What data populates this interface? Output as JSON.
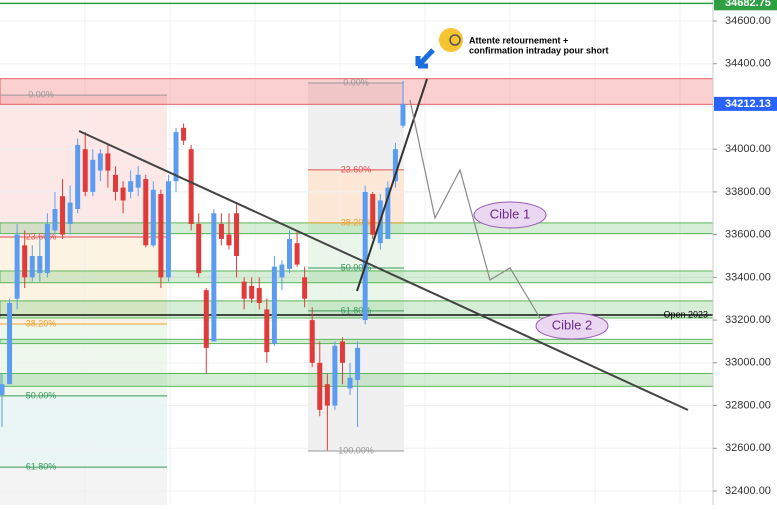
{
  "chart_data": {
    "type": "candlestick",
    "categories": [
      null,
      null,
      null,
      null,
      null,
      null,
      null,
      null,
      null,
      null,
      null,
      null,
      null,
      null,
      null,
      null,
      null,
      null,
      null,
      null,
      null,
      null,
      null,
      null,
      null,
      null,
      null,
      null,
      null,
      null,
      null,
      null,
      null,
      null,
      null,
      null,
      null,
      null,
      null,
      null,
      null,
      null,
      null,
      null,
      null,
      null,
      null,
      null,
      null,
      null,
      null,
      null,
      null,
      null
    ],
    "open": [
      32850,
      32900,
      33300,
      33550,
      33400,
      33420,
      33420,
      33620,
      33780,
      33650,
      33720,
      34000,
      33800,
      33900,
      33980,
      33880,
      33820,
      33800,
      33820,
      33860,
      33550,
      33790,
      33400,
      33850,
      34100,
      34000,
      33650,
      33340,
      33100,
      33650,
      33600,
      33700,
      33380,
      33360,
      33350,
      33250,
      33090,
      33400,
      33440,
      33560,
      33400,
      33200,
      33000,
      32900,
      32800,
      33100,
      32880,
      32920,
      33200,
      33790,
      33560,
      33580,
      33850,
      34110
    ],
    "high": [
      32950,
      33300,
      33650,
      33620,
      33550,
      33580,
      33700,
      33800,
      33860,
      33830,
      34050,
      34080,
      34000,
      34000,
      34020,
      33920,
      33850,
      33900,
      33920,
      33880,
      33850,
      33810,
      33880,
      34100,
      34120,
      34020,
      33700,
      33350,
      33720,
      33700,
      33700,
      33750,
      33400,
      33400,
      33400,
      33300,
      33500,
      33480,
      33620,
      33620,
      33450,
      33260,
      33100,
      32950,
      33100,
      33120,
      33000,
      33100,
      33830,
      33800,
      33790,
      33850,
      34030,
      34320
    ],
    "low": [
      32700,
      32900,
      33250,
      33350,
      33380,
      33380,
      33400,
      33600,
      33580,
      33600,
      33700,
      33780,
      33780,
      33850,
      33820,
      33760,
      33700,
      33770,
      33780,
      33540,
      33540,
      33350,
      33380,
      33800,
      34020,
      33620,
      33400,
      32950,
      33100,
      33550,
      33530,
      33400,
      33250,
      33280,
      33250,
      33000,
      33080,
      33340,
      33420,
      33450,
      33260,
      32980,
      32750,
      32590,
      32780,
      32900,
      32850,
      32700,
      33180,
      33580,
      33530,
      33580,
      33820,
      34100
    ],
    "close": [
      32900,
      33280,
      33600,
      33400,
      33500,
      33500,
      33650,
      33720,
      33600,
      33750,
      34020,
      33800,
      33950,
      33980,
      33900,
      33800,
      33760,
      33850,
      33880,
      33550,
      33810,
      33400,
      33850,
      34080,
      34040,
      33650,
      33420,
      33070,
      33700,
      33580,
      33550,
      33500,
      33300,
      33300,
      33280,
      33050,
      33450,
      33460,
      33580,
      33460,
      33300,
      33000,
      32780,
      32800,
      33080,
      33000,
      32930,
      33070,
      33800,
      33600,
      33760,
      33820,
      34000,
      34212.13
    ],
    "up_color": "#5b9cf0",
    "down_color": "#e03b3b",
    "ylim": [
      32334.5,
      34698.3
    ],
    "yticks": [
      {
        "value": 32400,
        "label": "32400.00"
      },
      {
        "value": 32600,
        "label": "32600.00"
      },
      {
        "value": 32800,
        "label": "32800.00"
      },
      {
        "value": 33000,
        "label": "33000.00"
      },
      {
        "value": 33200,
        "label": "33200.00"
      },
      {
        "value": 33400,
        "label": "33400.00"
      },
      {
        "value": 33600,
        "label": "33600.00"
      },
      {
        "value": 33800,
        "label": "33800.00"
      },
      {
        "value": 34000,
        "label": "34000.00"
      },
      {
        "value": 34200,
        "label": "34200.00"
      },
      {
        "value": 34400,
        "label": "34400.00"
      },
      {
        "value": 34600,
        "label": "34600.00"
      }
    ],
    "price_labels": [
      {
        "value": 34682.75,
        "label": "34682.75",
        "color": "#2ea043"
      },
      {
        "value": 34212.13,
        "label": "34212.13",
        "color": "#2962ff"
      }
    ],
    "zones": [
      [
        33605,
        33655
      ],
      [
        33375,
        33430
      ],
      [
        33210,
        33290
      ],
      [
        33090,
        33110
      ],
      [
        32890,
        32950
      ]
    ],
    "resistance_zone": [
      34210,
      34330
    ],
    "open_line": {
      "value": 33224,
      "label": "Open 2023"
    },
    "fib_left": [
      {
        "level": 34253,
        "text": "0.00%"
      },
      {
        "level": 33589,
        "text": "23.60%"
      },
      {
        "level": 33182,
        "text": "38.20%"
      },
      {
        "level": 32845,
        "text": "50.00%"
      },
      {
        "level": 32512,
        "text": "61.80%"
      }
    ],
    "fib_right": [
      {
        "level": 34310,
        "text": "0.00%"
      },
      {
        "level": 33903,
        "text": "23.60%"
      },
      {
        "level": 33655,
        "text": "38.20%"
      },
      {
        "level": 33444,
        "text": "50.00%"
      },
      {
        "level": 33243,
        "text": "61.80%"
      },
      {
        "level": 32587,
        "text": "100.00%"
      }
    ],
    "annotations": {
      "target1": "Cible 1",
      "target2": "Cible 2",
      "note_line1": "Attente retournement +",
      "note_line2": "confirmation intraday pour short"
    }
  }
}
